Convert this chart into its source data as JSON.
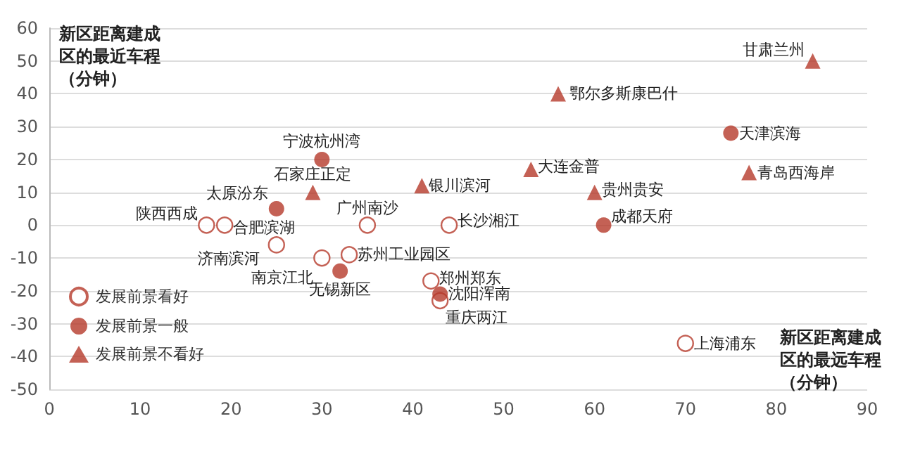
{
  "chart_data": {
    "type": "scatter",
    "xlabel": "新区距离建成区的最远车程（分钟）",
    "ylabel": "新区距离建成区的最近车程（分钟）",
    "series": [
      {
        "name": "发展前景看好",
        "color": "#b5392a",
        "marker": "circle",
        "x": [
          17.3,
          19.3,
          25,
          30,
          33,
          35,
          44,
          42,
          43,
          70
        ],
        "values": [
          0,
          0,
          -6,
          -10,
          -9,
          0,
          0,
          -17,
          -23,
          -36
        ]
      },
      {
        "name": "发展前景一般",
        "color": "#b5392a",
        "marker": "circle",
        "x": [
          30,
          25,
          32,
          43,
          61,
          75
        ],
        "values": [
          20,
          5,
          -14,
          -21,
          0,
          28
        ]
      },
      {
        "name": "发展前景不看好",
        "color": "#b5392a",
        "marker": "triangle",
        "x": [
          29,
          41,
          53,
          60,
          56,
          77,
          84
        ],
        "values": [
          10,
          12,
          17,
          10,
          40,
          16,
          50
        ]
      }
    ],
    "annotations": [
      {
        "text": "陕西西成",
        "x": 17.3,
        "y": 0
      },
      {
        "text": "合肥滨湖",
        "x": 19.3,
        "y": 0
      },
      {
        "text": "济南滨河",
        "x": 25,
        "y": -6
      },
      {
        "text": "南京江北",
        "x": 30,
        "y": -10
      },
      {
        "text": "苏州工业园区",
        "x": 33,
        "y": -9
      },
      {
        "text": "广州南沙",
        "x": 35,
        "y": 0
      },
      {
        "text": "长沙湘江",
        "x": 44,
        "y": 0
      },
      {
        "text": "郑州郑东",
        "x": 42,
        "y": -17
      },
      {
        "text": "重庆两江",
        "x": 43,
        "y": -23
      },
      {
        "text": "上海浦东",
        "x": 70,
        "y": -36
      },
      {
        "text": "宁波杭州湾",
        "x": 30,
        "y": 20
      },
      {
        "text": "太原汾东",
        "x": 25,
        "y": 5
      },
      {
        "text": "无锡新区",
        "x": 32,
        "y": -14
      },
      {
        "text": "沈阳浑南",
        "x": 43,
        "y": -21
      },
      {
        "text": "成都天府",
        "x": 61,
        "y": 0
      },
      {
        "text": "天津滨海",
        "x": 75,
        "y": 28
      },
      {
        "text": "石家庄正定",
        "x": 29,
        "y": 10
      },
      {
        "text": "银川滨河",
        "x": 41,
        "y": 12
      },
      {
        "text": "大连金普",
        "x": 53,
        "y": 17
      },
      {
        "text": "贵州贵安",
        "x": 60,
        "y": 10
      },
      {
        "text": "鄂尔多斯康巴什",
        "x": 56,
        "y": 40
      },
      {
        "text": "青岛西海岸",
        "x": 77,
        "y": 16
      },
      {
        "text": "甘肃兰州",
        "x": 84,
        "y": 50
      }
    ],
    "xlim": [
      0,
      90
    ],
    "xticks": [
      0,
      10,
      20,
      30,
      40,
      50,
      60,
      70,
      80,
      90
    ],
    "ylim": [
      -50,
      60
    ],
    "yticks": [
      -50,
      -40,
      -30,
      -20,
      -10,
      0,
      10,
      20,
      30,
      40,
      50,
      60
    ],
    "grid": "y",
    "legend": "bottom left"
  }
}
